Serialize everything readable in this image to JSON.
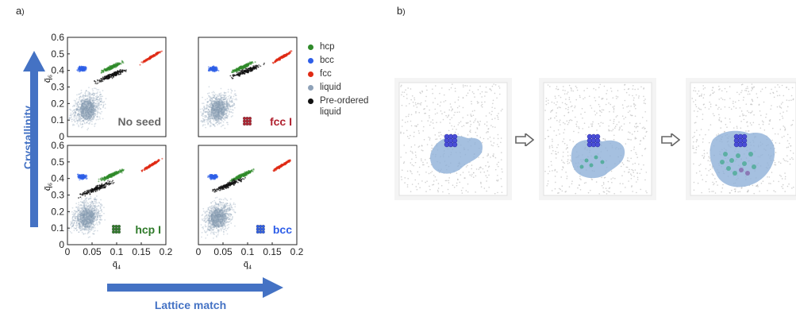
{
  "panel_a_label": "a",
  "panel_b_label": "b",
  "y_big_label": "Crystallinity",
  "x_big_label": "Lattice match",
  "colors": {
    "hcp": "#2f8a2a",
    "bcc": "#2e5ee8",
    "fcc": "#e02a14",
    "liquid": "#8fa2b8",
    "preordered": "#111111",
    "arrow": "#4472c4"
  },
  "legend": [
    {
      "label": "hcp",
      "color": "#2f8a2a"
    },
    {
      "label": "bcc",
      "color": "#2e5ee8"
    },
    {
      "label": "fcc",
      "color": "#e02a14"
    },
    {
      "label": "liquid",
      "color": "#8fa2b8"
    },
    {
      "label": "Pre-ordered liquid",
      "color": "#111111"
    }
  ],
  "chart_data": [
    {
      "type": "scatter",
      "annotation": "No seed",
      "annotation_color": "#666666",
      "xlim": [
        0,
        0.2
      ],
      "ylim": [
        0,
        0.6
      ],
      "xticks": [
        "0",
        "0.05",
        "0.1",
        "0.15",
        "0.2"
      ],
      "yticks": [
        "0",
        "0.1",
        "0.2",
        "0.3",
        "0.4",
        "0.5",
        "0.6"
      ],
      "xlabel": "q̄₄",
      "ylabel": "q̄₆",
      "series": [
        {
          "name": "liquid",
          "center": [
            0.04,
            0.17
          ]
        },
        {
          "name": "bcc",
          "center": [
            0.03,
            0.41
          ]
        },
        {
          "name": "hcp",
          "center": [
            0.09,
            0.42
          ]
        },
        {
          "name": "fcc",
          "center": [
            0.17,
            0.48
          ]
        },
        {
          "name": "Pre-ordered liquid",
          "center": [
            0.09,
            0.37
          ]
        }
      ]
    },
    {
      "type": "scatter",
      "annotation": "fcc I",
      "annotation_color": "#b0212f",
      "xlim": [
        0,
        0.2
      ],
      "ylim": [
        0,
        0.6
      ],
      "xticks": [
        "0",
        "0.05",
        "0.1",
        "0.15",
        "0.2"
      ],
      "yticks": [
        "0",
        "0.1",
        "0.2",
        "0.3",
        "0.4",
        "0.5",
        "0.6"
      ],
      "xlabel": "q̄₄",
      "ylabel": "q̄₆",
      "series": [
        {
          "name": "liquid",
          "center": [
            0.04,
            0.17
          ]
        },
        {
          "name": "bcc",
          "center": [
            0.03,
            0.41
          ]
        },
        {
          "name": "hcp",
          "center": [
            0.09,
            0.42
          ]
        },
        {
          "name": "fcc",
          "center": [
            0.17,
            0.48
          ]
        },
        {
          "name": "Pre-ordered liquid",
          "center": [
            0.1,
            0.4
          ]
        }
      ]
    },
    {
      "type": "scatter",
      "annotation": "hcp I",
      "annotation_color": "#2f7a2a",
      "xlim": [
        0,
        0.2
      ],
      "ylim": [
        0,
        0.6
      ],
      "xticks": [
        "0",
        "0.05",
        "0.1",
        "0.15",
        "0.2"
      ],
      "yticks": [
        "0",
        "0.1",
        "0.2",
        "0.3",
        "0.4",
        "0.5",
        "0.6"
      ],
      "xlabel": "q̄₄",
      "ylabel": "q̄₆",
      "series": [
        {
          "name": "liquid",
          "center": [
            0.04,
            0.17
          ]
        },
        {
          "name": "bcc",
          "center": [
            0.03,
            0.41
          ]
        },
        {
          "name": "hcp",
          "center": [
            0.09,
            0.42
          ]
        },
        {
          "name": "fcc",
          "center": [
            0.17,
            0.48
          ]
        },
        {
          "name": "Pre-ordered liquid",
          "center": [
            0.06,
            0.34
          ]
        }
      ]
    },
    {
      "type": "scatter",
      "annotation": "bcc",
      "annotation_color": "#2e5ee8",
      "xlim": [
        0,
        0.2
      ],
      "ylim": [
        0,
        0.6
      ],
      "xticks": [
        "0",
        "0.05",
        "0.1",
        "0.15",
        "0.2"
      ],
      "yticks": [
        "0",
        "0.1",
        "0.2",
        "0.3",
        "0.4",
        "0.5",
        "0.6"
      ],
      "xlabel": "q̄₄",
      "ylabel": "q̄₆",
      "series": [
        {
          "name": "liquid",
          "center": [
            0.04,
            0.17
          ]
        },
        {
          "name": "bcc",
          "center": [
            0.03,
            0.41
          ]
        },
        {
          "name": "hcp",
          "center": [
            0.09,
            0.42
          ]
        },
        {
          "name": "fcc",
          "center": [
            0.17,
            0.48
          ]
        },
        {
          "name": "Pre-ordered liquid",
          "center": [
            0.06,
            0.36
          ]
        }
      ]
    }
  ],
  "arrow_icons": [
    "arrow-1",
    "arrow-2"
  ]
}
